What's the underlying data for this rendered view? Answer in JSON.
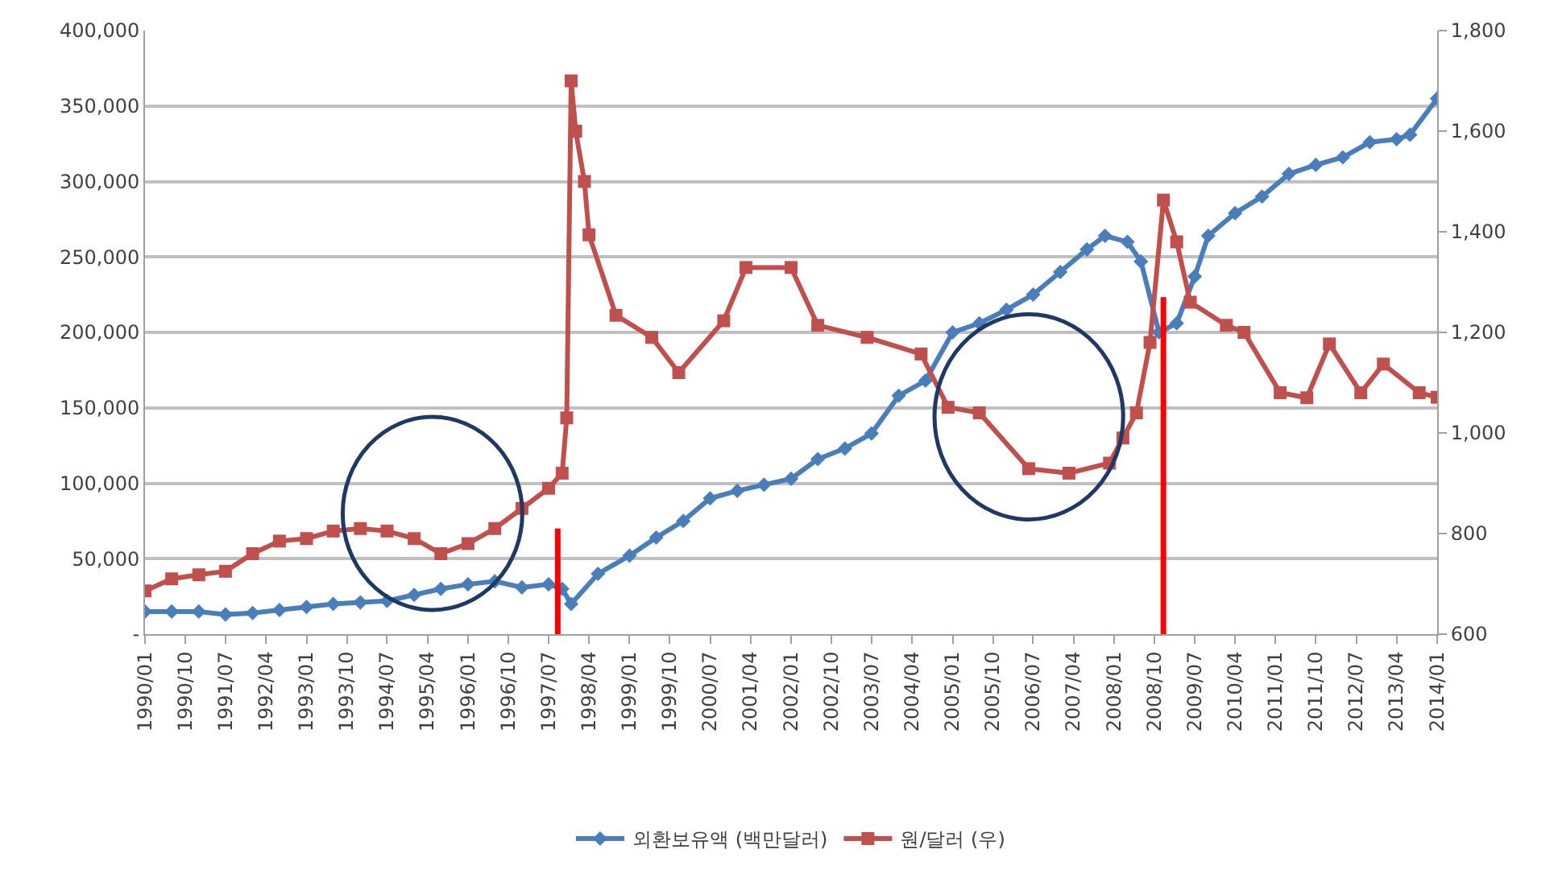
{
  "chart_data": {
    "type": "line",
    "xlim": [
      "1990-01",
      "2014-01"
    ],
    "xticks": [
      {
        "value": "1990-01",
        "label": "1990/01"
      },
      {
        "value": "1990-10",
        "label": "1990/10"
      },
      {
        "value": "1991-07",
        "label": "1991/07"
      },
      {
        "value": "1992-04",
        "label": "1992/04"
      },
      {
        "value": "1993-01",
        "label": "1993/01"
      },
      {
        "value": "1993-10",
        "label": "1993/10"
      },
      {
        "value": "1994-07",
        "label": "1994/07"
      },
      {
        "value": "1995-04",
        "label": "1995/04"
      },
      {
        "value": "1996-01",
        "label": "1996/01"
      },
      {
        "value": "1996-10",
        "label": "1996/10"
      },
      {
        "value": "1997-07",
        "label": "1997/07"
      },
      {
        "value": "1998-04",
        "label": "1998/04"
      },
      {
        "value": "1999-01",
        "label": "1999/01"
      },
      {
        "value": "1999-10",
        "label": "1999/10"
      },
      {
        "value": "2000-07",
        "label": "2000/07"
      },
      {
        "value": "2001-04",
        "label": "2001/04"
      },
      {
        "value": "2002-01",
        "label": "2002/01"
      },
      {
        "value": "2002-10",
        "label": "2002/10"
      },
      {
        "value": "2003-07",
        "label": "2003/07"
      },
      {
        "value": "2004-04",
        "label": "2004/04"
      },
      {
        "value": "2005-01",
        "label": "2005/01"
      },
      {
        "value": "2005-10",
        "label": "2005/10"
      },
      {
        "value": "2006-07",
        "label": "2006/07"
      },
      {
        "value": "2007-04",
        "label": "2007/04"
      },
      {
        "value": "2008-01",
        "label": "2008/01"
      },
      {
        "value": "2008-10",
        "label": "2008/10"
      },
      {
        "value": "2009-07",
        "label": "2009/07"
      },
      {
        "value": "2010-04",
        "label": "2010/04"
      },
      {
        "value": "2011-01",
        "label": "2011/01"
      },
      {
        "value": "2011-10",
        "label": "2011/10"
      },
      {
        "value": "2012-07",
        "label": "2012/07"
      },
      {
        "value": "2013-04",
        "label": "2013/04"
      },
      {
        "value": "2014-01",
        "label": "2014/01"
      }
    ],
    "ylim": [
      0,
      400000
    ],
    "yticks": [
      {
        "value": 0,
        "label": "-"
      },
      {
        "value": 50000,
        "label": "50,000"
      },
      {
        "value": 100000,
        "label": "100,000"
      },
      {
        "value": 150000,
        "label": "150,000"
      },
      {
        "value": 200000,
        "label": "200,000"
      },
      {
        "value": 250000,
        "label": "250,000"
      },
      {
        "value": 300000,
        "label": "300,000"
      },
      {
        "value": 350000,
        "label": "350,000"
      },
      {
        "value": 400000,
        "label": "400,000"
      }
    ],
    "y2lim": [
      600,
      1800
    ],
    "y2ticks": [
      600,
      800,
      {
        "value": 1000,
        "label": "1,000"
      },
      {
        "value": 1200,
        "label": "1,200"
      },
      {
        "value": 1400,
        "label": "1,400"
      },
      {
        "value": 1600,
        "label": "1,600"
      },
      {
        "value": 1800,
        "label": "1,800"
      }
    ],
    "grid": "y",
    "legend": "bottom",
    "series": [
      {
        "name": "외환보유액 (백만달러)",
        "color": "#4a7ebb",
        "marker": "diamond",
        "x": [
          "1990-01",
          "1990-07",
          "1991-01",
          "1991-07",
          "1992-01",
          "1992-07",
          "1993-01",
          "1993-07",
          "1994-01",
          "1994-07",
          "1995-01",
          "1995-07",
          "1996-01",
          "1996-07",
          "1997-01",
          "1997-07",
          "1997-10",
          "1997-12",
          "1998-06",
          "1999-01",
          "1999-07",
          "2000-01",
          "2000-07",
          "2001-01",
          "2001-07",
          "2002-01",
          "2002-07",
          "2003-01",
          "2003-07",
          "2004-01",
          "2004-07",
          "2005-01",
          "2005-07",
          "2006-01",
          "2006-07",
          "2007-01",
          "2007-07",
          "2007-11",
          "2008-04",
          "2008-07",
          "2008-11",
          "2009-03",
          "2009-07",
          "2009-10",
          "2010-04",
          "2010-10",
          "2011-04",
          "2011-10",
          "2012-04",
          "2012-10",
          "2013-04",
          "2013-07",
          "2014-01"
        ],
        "values": [
          15000,
          15000,
          15000,
          13000,
          14000,
          16000,
          18000,
          20000,
          21000,
          22000,
          26000,
          30000,
          33000,
          35000,
          31000,
          33000,
          30000,
          20000,
          40000,
          52000,
          64000,
          75000,
          90000,
          95000,
          99000,
          103000,
          116000,
          123000,
          133000,
          158000,
          168000,
          200000,
          206000,
          215000,
          225000,
          240000,
          255000,
          264000,
          260000,
          247000,
          200000,
          206000,
          237000,
          264000,
          279000,
          290000,
          305000,
          311000,
          316000,
          326000,
          328000,
          331000,
          355000
        ]
      },
      {
        "name": "원/달러 (우)",
        "color": "#c0504d",
        "marker": "square",
        "axis": "y2",
        "x": [
          "1990-01",
          "1990-07",
          "1991-01",
          "1991-07",
          "1992-01",
          "1992-07",
          "1993-01",
          "1993-07",
          "1994-01",
          "1994-07",
          "1995-01",
          "1995-07",
          "1996-01",
          "1996-07",
          "1997-01",
          "1997-07",
          "1997-10",
          "1997-11",
          "1997-12",
          "1998-01",
          "1998-03",
          "1998-04",
          "1998-10",
          "1999-06",
          "1999-12",
          "2000-10",
          "2001-03",
          "2002-01",
          "2002-07",
          "2003-06",
          "2004-06",
          "2004-12",
          "2005-07",
          "2006-06",
          "2007-03",
          "2007-12",
          "2008-03",
          "2008-06",
          "2008-09",
          "2008-12",
          "2009-03",
          "2009-06",
          "2010-02",
          "2010-06",
          "2011-02",
          "2011-08",
          "2012-01",
          "2012-08",
          "2013-01",
          "2013-09",
          "2014-01"
        ],
        "values": [
          686,
          710,
          718,
          725,
          760,
          785,
          790,
          805,
          810,
          805,
          790,
          760,
          780,
          810,
          850,
          890,
          920,
          1030,
          1700,
          1600,
          1500,
          1394,
          1234,
          1190,
          1120,
          1223,
          1329,
          1329,
          1214,
          1190,
          1157,
          1051,
          1040,
          929,
          920,
          940,
          990,
          1040,
          1180,
          1463,
          1380,
          1260,
          1214,
          1200,
          1080,
          1070,
          1177,
          1080,
          1137,
          1080,
          1071
        ]
      },
      {
        "color": "#ff0000",
        "axis": "y2",
        "marker": "none",
        "x": [
          "1997-09",
          "1997-09"
        ],
        "values": [
          600,
          810
        ]
      },
      {
        "color": "#ff0000",
        "axis": "y2",
        "marker": "none",
        "x": [
          "2008-12",
          "2008-12"
        ],
        "values": [
          600,
          1270
        ]
      }
    ]
  }
}
